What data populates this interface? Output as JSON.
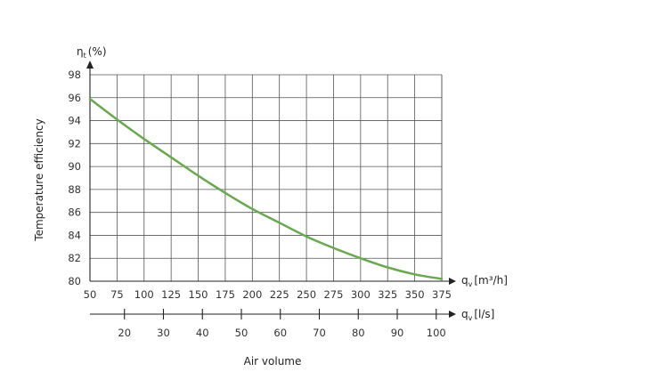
{
  "chart_data": {
    "type": "line",
    "y_axis": {
      "label": "η",
      "label_sub": "t",
      "unit": "(%)",
      "side_label": "Temperature efficiency",
      "ticks": [
        80,
        82,
        84,
        86,
        88,
        90,
        92,
        94,
        96,
        98
      ],
      "range": [
        80,
        98
      ]
    },
    "x_axis_primary": {
      "label": "q",
      "label_sub": "v",
      "unit": "[m³/h]",
      "ticks": [
        50,
        75,
        100,
        125,
        150,
        175,
        200,
        225,
        250,
        275,
        300,
        325,
        350,
        375
      ],
      "range": [
        50,
        375
      ]
    },
    "x_axis_secondary": {
      "label": "q",
      "label_sub": "v",
      "unit": "[l/s]",
      "ticks": [
        20,
        30,
        40,
        50,
        60,
        70,
        80,
        90,
        100
      ]
    },
    "x_title": "Air volume",
    "grid": true,
    "series": [
      {
        "color": "#6aa84f",
        "x": [
          50,
          75,
          100,
          125,
          150,
          175,
          200,
          225,
          250,
          275,
          300,
          325,
          350,
          375
        ],
        "y": [
          95.9,
          94.1,
          92.4,
          90.8,
          89.2,
          87.7,
          86.3,
          85.1,
          83.9,
          82.9,
          82.0,
          81.2,
          80.6,
          80.2
        ]
      }
    ]
  }
}
